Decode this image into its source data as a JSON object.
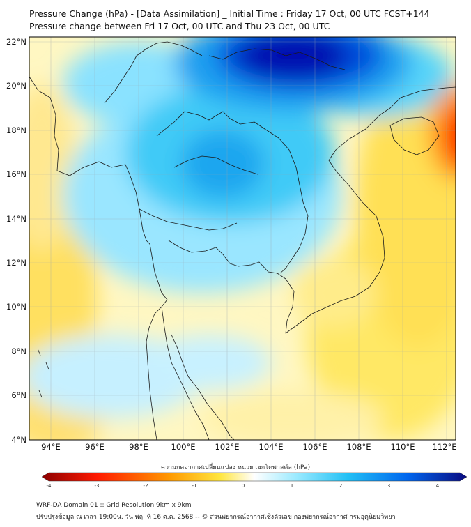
{
  "title_line1": "Pressure Change (hPa) - [Data Assimilation] _ Initial Time : Friday 17 Oct, 00 UTC FCST+144",
  "title_line2": "Pressure change between Fri 17 Oct, 00 UTC and Thu 23 Oct, 00 UTC",
  "lat_labels": [
    "22°N",
    "20°N",
    "18°N",
    "16°N",
    "14°N",
    "12°N",
    "10°N",
    "8°N",
    "6°N",
    "4°N"
  ],
  "lon_labels": [
    "94°E",
    "96°E",
    "98°E",
    "100°E",
    "102°E",
    "104°E",
    "106°E",
    "108°E",
    "110°E",
    "112°E"
  ],
  "colorbar": {
    "label": "ความกดอากาศเปลี่ยนแปลง หน่วย เฮกโตพาสคัล (hPa)",
    "ticks": [
      "-4",
      "-3",
      "-2",
      "-1",
      "0",
      "1",
      "2",
      "3",
      "4"
    ],
    "colors": {
      "strong_negative": "#8b0000",
      "negative": "#ff3300",
      "weak_negative": "#ffe640",
      "zero": "#ffffff",
      "weak_positive": "#7fe3ff",
      "positive": "#0070ee",
      "strong_positive": "#0a0a80"
    }
  },
  "footer_line1": "WRF-DA Domain 01 :: Grid Resolution 9km x 9km",
  "footer_line2": "ปรับปรุงข้อมูล ณ เวลา 19:00น. วัน พฤ. ที่ 16 ต.ค. 2568 -- © ส่วนพยากรณ์อากาศเชิงตัวเลข กองพยากรณ์อากาศ กรมอุตุนิยมวิทยา"
}
